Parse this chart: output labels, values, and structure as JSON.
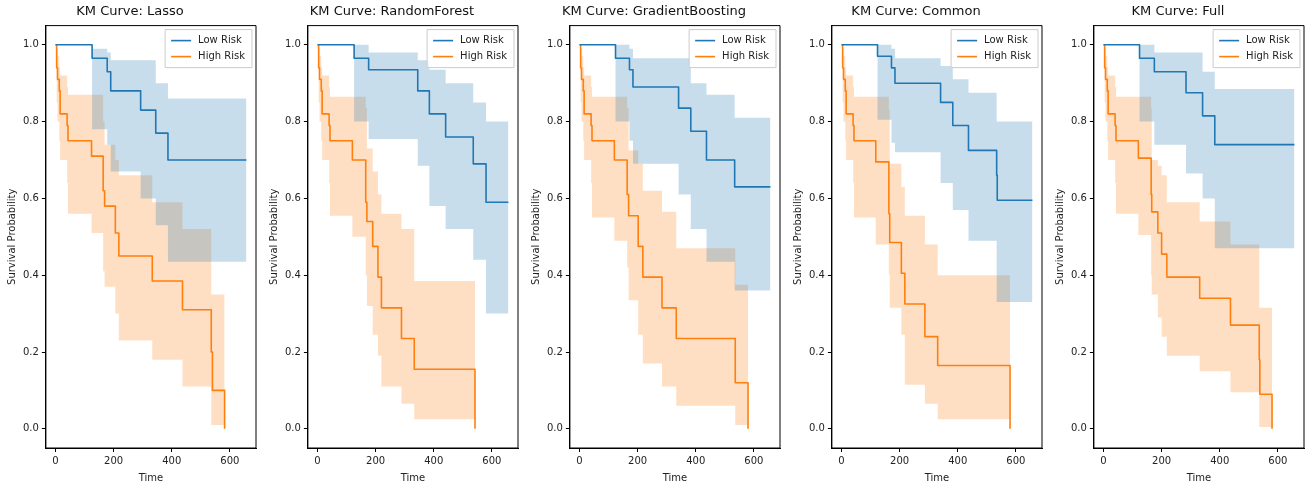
{
  "chart_data": [
    {
      "type": "step",
      "title": "KM Curve: Lasso",
      "xlabel": "Time",
      "ylabel": "Survival Probability",
      "xlim": [
        -33,
        690
      ],
      "ylim": [
        -0.05,
        1.05
      ],
      "xticks": [
        0,
        200,
        400,
        600
      ],
      "yticks": [
        {
          "value": 0,
          "label": "0.0"
        },
        {
          "value": 0.2,
          "label": "0.2"
        },
        {
          "value": 0.4,
          "label": "0.4"
        },
        {
          "value": 0.6,
          "label": "0.6"
        },
        {
          "value": 0.8,
          "label": "0.8"
        },
        {
          "value": 1,
          "label": "1.0"
        }
      ],
      "grid": false,
      "legend": "top right",
      "marker": "none",
      "series": [
        {
          "name": "Low Risk",
          "color": "#1f77b4",
          "x": [
            0,
            126,
            178,
            190,
            293,
            345,
            387,
            657
          ],
          "values": [
            1,
            0.965,
            0.93,
            0.88,
            0.83,
            0.77,
            0.7,
            0.7
          ],
          "upper": [
            1,
            0.99,
            0.98,
            0.96,
            0.96,
            0.9,
            0.86,
            0.86
          ],
          "lower": [
            1,
            0.78,
            0.74,
            0.67,
            0.6,
            0.53,
            0.435,
            0.435
          ]
        },
        {
          "name": "High Risk",
          "color": "#ff7f0e",
          "x": [
            0,
            4,
            7,
            13,
            16,
            40,
            43,
            124,
            164,
            169,
            206,
            218,
            333,
            437,
            536,
            540,
            582
          ],
          "values": [
            1,
            0.94,
            0.91,
            0.88,
            0.82,
            0.79,
            0.75,
            0.71,
            0.62,
            0.58,
            0.51,
            0.45,
            0.385,
            0.31,
            0.2,
            0.1,
            0
          ],
          "upper": [
            1,
            0.99,
            0.97,
            0.94,
            0.92,
            0.89,
            0.87,
            0.87,
            0.8,
            0.74,
            0.7,
            0.66,
            0.59,
            0.52,
            0.35,
            0.35,
            0.35
          ],
          "lower": [
            1,
            0.85,
            0.8,
            0.75,
            0.7,
            0.64,
            0.56,
            0.51,
            0.41,
            0.37,
            0.3,
            0.23,
            0.18,
            0.11,
            0.01,
            0.01,
            0.01
          ]
        }
      ]
    },
    {
      "type": "step",
      "title": "KM Curve: RandomForest",
      "xlabel": "Time",
      "ylabel": "Survival Probability",
      "xlim": [
        -33,
        690
      ],
      "ylim": [
        -0.05,
        1.05
      ],
      "xticks": [
        0,
        200,
        400,
        600
      ],
      "yticks": [
        {
          "value": 0,
          "label": "0.0"
        },
        {
          "value": 0.2,
          "label": "0.2"
        },
        {
          "value": 0.4,
          "label": "0.4"
        },
        {
          "value": 0.6,
          "label": "0.6"
        },
        {
          "value": 0.8,
          "label": "0.8"
        },
        {
          "value": 1,
          "label": "1.0"
        }
      ],
      "grid": false,
      "legend": "top right",
      "marker": "none",
      "series": [
        {
          "name": "Low Risk",
          "color": "#1f77b4",
          "x": [
            0,
            126,
            176,
            345,
            385,
            441,
            536,
            580,
            657
          ],
          "values": [
            1,
            0.965,
            0.935,
            0.88,
            0.82,
            0.76,
            0.69,
            0.59,
            0.59
          ],
          "upper": [
            1,
            1,
            0.98,
            0.96,
            0.935,
            0.9,
            0.85,
            0.8,
            0.8
          ],
          "lower": [
            1,
            0.8,
            0.755,
            0.685,
            0.58,
            0.52,
            0.44,
            0.3,
            0.3
          ]
        },
        {
          "name": "High Risk",
          "color": "#ff7f0e",
          "x": [
            0,
            4,
            7,
            13,
            16,
            40,
            43,
            120,
            166,
            170,
            190,
            208,
            220,
            289,
            333,
            542
          ],
          "values": [
            1,
            0.94,
            0.91,
            0.88,
            0.82,
            0.79,
            0.75,
            0.7,
            0.59,
            0.54,
            0.475,
            0.395,
            0.315,
            0.235,
            0.155,
            0
          ],
          "upper": [
            1,
            0.99,
            0.97,
            0.94,
            0.92,
            0.89,
            0.865,
            0.865,
            0.835,
            0.73,
            0.67,
            0.61,
            0.56,
            0.52,
            0.385,
            0.385
          ],
          "lower": [
            1,
            0.85,
            0.8,
            0.75,
            0.7,
            0.64,
            0.555,
            0.5,
            0.4,
            0.32,
            0.245,
            0.19,
            0.11,
            0.065,
            0.025,
            0.025
          ]
        }
      ]
    },
    {
      "type": "step",
      "title": "KM Curve: GradientBoosting",
      "xlabel": "Time",
      "ylabel": "Survival Probability",
      "xlim": [
        -33,
        690
      ],
      "ylim": [
        -0.05,
        1.05
      ],
      "xticks": [
        0,
        200,
        400,
        600
      ],
      "yticks": [
        {
          "value": 0,
          "label": "0.0"
        },
        {
          "value": 0.2,
          "label": "0.2"
        },
        {
          "value": 0.4,
          "label": "0.4"
        },
        {
          "value": 0.6,
          "label": "0.6"
        },
        {
          "value": 0.8,
          "label": "0.8"
        },
        {
          "value": 1,
          "label": "1.0"
        }
      ],
      "grid": false,
      "legend": "top right",
      "marker": "none",
      "series": [
        {
          "name": "Low Risk",
          "color": "#1f77b4",
          "x": [
            0,
            124,
            172,
            184,
            341,
            383,
            437,
            534,
            657
          ],
          "values": [
            1,
            0.965,
            0.935,
            0.89,
            0.835,
            0.775,
            0.7,
            0.63,
            0.63
          ],
          "upper": [
            1,
            1,
            0.99,
            0.965,
            0.965,
            0.9,
            0.87,
            0.81,
            0.81
          ],
          "lower": [
            1,
            0.8,
            0.75,
            0.69,
            0.61,
            0.52,
            0.435,
            0.36,
            0.36
          ]
        },
        {
          "name": "High Risk",
          "color": "#ff7f0e",
          "x": [
            0,
            4,
            7,
            13,
            16,
            40,
            43,
            120,
            164,
            169,
            202,
            218,
            284,
            333,
            536,
            580
          ],
          "values": [
            1,
            0.94,
            0.91,
            0.88,
            0.82,
            0.79,
            0.75,
            0.7,
            0.61,
            0.555,
            0.475,
            0.395,
            0.315,
            0.235,
            0.12,
            0
          ],
          "upper": [
            1,
            0.99,
            0.97,
            0.94,
            0.92,
            0.89,
            0.865,
            0.865,
            0.835,
            0.725,
            0.69,
            0.62,
            0.565,
            0.47,
            0.375,
            0.375
          ],
          "lower": [
            1,
            0.85,
            0.8,
            0.75,
            0.7,
            0.64,
            0.55,
            0.49,
            0.42,
            0.335,
            0.245,
            0.17,
            0.11,
            0.06,
            0.01,
            0.01
          ]
        }
      ]
    },
    {
      "type": "step",
      "title": "KM Curve: Common",
      "xlabel": "Time",
      "ylabel": "Survival Probability",
      "xlim": [
        -33,
        690
      ],
      "ylim": [
        -0.05,
        1.05
      ],
      "xticks": [
        0,
        200,
        400,
        600
      ],
      "yticks": [
        {
          "value": 0,
          "label": "0.0"
        },
        {
          "value": 0.2,
          "label": "0.2"
        },
        {
          "value": 0.4,
          "label": "0.4"
        },
        {
          "value": 0.6,
          "label": "0.6"
        },
        {
          "value": 0.8,
          "label": "0.8"
        },
        {
          "value": 1,
          "label": "1.0"
        }
      ],
      "grid": false,
      "legend": "top right",
      "marker": "none",
      "series": [
        {
          "name": "Low Risk",
          "color": "#1f77b4",
          "x": [
            0,
            124,
            172,
            184,
            341,
            383,
            437,
            534,
            536,
            657
          ],
          "values": [
            1,
            0.97,
            0.94,
            0.9,
            0.85,
            0.79,
            0.725,
            0.66,
            0.595,
            0.595
          ],
          "upper": [
            1,
            1,
            0.99,
            0.965,
            0.945,
            0.91,
            0.875,
            0.8,
            0.8,
            0.8
          ],
          "lower": [
            1,
            0.805,
            0.745,
            0.72,
            0.64,
            0.57,
            0.49,
            0.33,
            0.33,
            0.33
          ]
        },
        {
          "name": "High Risk",
          "color": "#ff7f0e",
          "x": [
            0,
            4,
            7,
            13,
            16,
            40,
            43,
            118,
            163,
            166,
            206,
            218,
            287,
            331,
            580
          ],
          "values": [
            1,
            0.94,
            0.91,
            0.88,
            0.82,
            0.79,
            0.75,
            0.695,
            0.56,
            0.485,
            0.405,
            0.325,
            0.24,
            0.165,
            0
          ],
          "upper": [
            1,
            0.99,
            0.97,
            0.94,
            0.92,
            0.89,
            0.865,
            0.865,
            0.83,
            0.69,
            0.63,
            0.555,
            0.48,
            0.4,
            0.4
          ],
          "lower": [
            1,
            0.85,
            0.8,
            0.75,
            0.7,
            0.64,
            0.55,
            0.48,
            0.4,
            0.315,
            0.245,
            0.115,
            0.065,
            0.025,
            0.025
          ]
        }
      ]
    },
    {
      "type": "step",
      "title": "KM Curve: Full",
      "xlabel": "Time",
      "ylabel": "Survival Probability",
      "xlim": [
        -33,
        690
      ],
      "ylim": [
        -0.05,
        1.05
      ],
      "xticks": [
        0,
        200,
        400,
        600
      ],
      "yticks": [
        {
          "value": 0,
          "label": "0.0"
        },
        {
          "value": 0.2,
          "label": "0.2"
        },
        {
          "value": 0.4,
          "label": "0.4"
        },
        {
          "value": 0.6,
          "label": "0.6"
        },
        {
          "value": 0.8,
          "label": "0.8"
        },
        {
          "value": 1,
          "label": "1.0"
        }
      ],
      "grid": false,
      "legend": "top right",
      "marker": "none",
      "series": [
        {
          "name": "Low Risk",
          "color": "#1f77b4",
          "x": [
            0,
            124,
            175,
            284,
            341,
            383,
            657
          ],
          "values": [
            1,
            0.965,
            0.93,
            0.875,
            0.815,
            0.74,
            0.74
          ],
          "upper": [
            1,
            1,
            0.98,
            0.98,
            0.93,
            0.885,
            0.885
          ],
          "lower": [
            1,
            0.8,
            0.74,
            0.665,
            0.6,
            0.47,
            0.47
          ]
        },
        {
          "name": "High Risk",
          "color": "#ff7f0e",
          "x": [
            0,
            4,
            7,
            13,
            16,
            40,
            43,
            120,
            164,
            166,
            187,
            200,
            218,
            331,
            437,
            536,
            538,
            580
          ],
          "values": [
            1,
            0.94,
            0.91,
            0.88,
            0.82,
            0.79,
            0.75,
            0.705,
            0.61,
            0.565,
            0.51,
            0.455,
            0.395,
            0.34,
            0.27,
            0.18,
            0.09,
            0
          ],
          "upper": [
            1,
            0.99,
            0.97,
            0.94,
            0.92,
            0.89,
            0.865,
            0.865,
            0.835,
            0.7,
            0.685,
            0.66,
            0.59,
            0.54,
            0.48,
            0.315,
            0.315,
            0.315
          ],
          "lower": [
            1,
            0.85,
            0.8,
            0.75,
            0.7,
            0.64,
            0.56,
            0.505,
            0.4,
            0.35,
            0.29,
            0.24,
            0.19,
            0.15,
            0.095,
            0.005,
            0.005,
            0.005
          ]
        }
      ]
    }
  ]
}
